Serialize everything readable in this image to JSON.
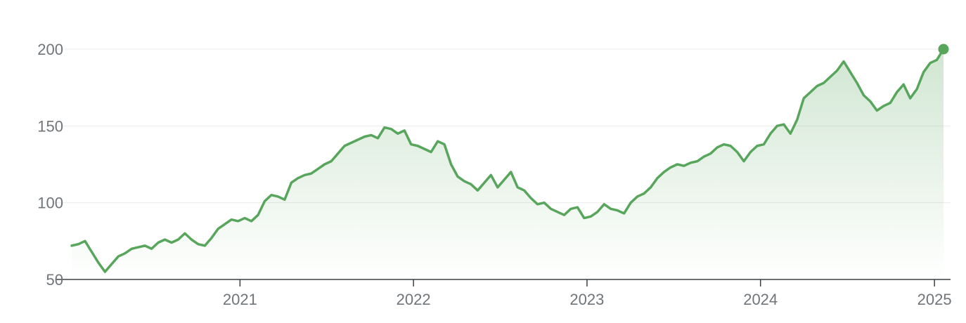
{
  "chart_data": {
    "type": "area",
    "title": "",
    "xlabel": "",
    "ylabel": "",
    "ylim": [
      50,
      200
    ],
    "y_ticks": [
      50,
      100,
      150,
      200
    ],
    "x_tick_labels": [
      "2021",
      "2022",
      "2023",
      "2024",
      "2025"
    ],
    "x_ticks": [
      "2021-01-01",
      "2022-01-01",
      "2023-01-01",
      "2024-01-01",
      "2025-01-01"
    ],
    "grid": true,
    "colors": {
      "line": "#58a55c",
      "fill": "#58a55c",
      "endpoint": "#58a55c"
    },
    "series": [
      {
        "x": [
          "2020-01-13",
          "2020-01-27",
          "2020-02-10",
          "2020-02-24",
          "2020-03-09",
          "2020-03-23",
          "2020-04-06",
          "2020-04-20",
          "2020-05-04",
          "2020-05-18",
          "2020-06-01",
          "2020-06-15",
          "2020-06-29",
          "2020-07-13",
          "2020-07-27",
          "2020-08-10",
          "2020-08-24",
          "2020-09-07",
          "2020-09-21",
          "2020-10-05",
          "2020-10-19",
          "2020-11-02",
          "2020-11-16",
          "2020-11-30",
          "2020-12-14",
          "2020-12-28",
          "2021-01-11",
          "2021-01-25",
          "2021-02-08",
          "2021-02-22",
          "2021-03-08",
          "2021-03-22",
          "2021-04-05",
          "2021-04-19",
          "2021-05-03",
          "2021-05-17",
          "2021-05-31",
          "2021-06-14",
          "2021-06-28",
          "2021-07-12",
          "2021-07-26",
          "2021-08-09",
          "2021-08-23",
          "2021-09-06",
          "2021-09-20",
          "2021-10-04",
          "2021-10-18",
          "2021-11-01",
          "2021-11-15",
          "2021-11-29",
          "2021-12-13",
          "2021-12-27",
          "2022-01-10",
          "2022-01-24",
          "2022-02-07",
          "2022-02-21",
          "2022-03-07",
          "2022-03-21",
          "2022-04-04",
          "2022-04-18",
          "2022-05-02",
          "2022-05-16",
          "2022-05-30",
          "2022-06-13",
          "2022-06-27",
          "2022-07-11",
          "2022-07-25",
          "2022-08-08",
          "2022-08-22",
          "2022-09-05",
          "2022-09-19",
          "2022-10-03",
          "2022-10-17",
          "2022-10-31",
          "2022-11-14",
          "2022-11-28",
          "2022-12-12",
          "2022-12-26",
          "2023-01-09",
          "2023-01-23",
          "2023-02-06",
          "2023-02-20",
          "2023-03-06",
          "2023-03-20",
          "2023-04-03",
          "2023-04-17",
          "2023-05-01",
          "2023-05-15",
          "2023-05-29",
          "2023-06-12",
          "2023-06-26",
          "2023-07-10",
          "2023-07-24",
          "2023-08-07",
          "2023-08-21",
          "2023-09-04",
          "2023-09-18",
          "2023-10-02",
          "2023-10-16",
          "2023-10-30",
          "2023-11-13",
          "2023-11-27",
          "2023-12-11",
          "2023-12-25",
          "2024-01-08",
          "2024-01-22",
          "2024-02-05",
          "2024-02-19",
          "2024-03-04",
          "2024-03-18",
          "2024-04-01",
          "2024-04-15",
          "2024-04-29",
          "2024-05-13",
          "2024-05-27",
          "2024-06-10",
          "2024-06-24",
          "2024-07-08",
          "2024-07-22",
          "2024-08-05",
          "2024-08-19",
          "2024-09-02",
          "2024-09-16",
          "2024-09-30",
          "2024-10-14",
          "2024-10-28",
          "2024-11-11",
          "2024-11-25",
          "2024-12-09",
          "2024-12-23",
          "2025-01-06",
          "2025-01-20"
        ],
        "values": [
          72,
          73,
          75,
          68,
          61,
          55,
          60,
          65,
          67,
          70,
          71,
          72,
          70,
          74,
          76,
          74,
          76,
          80,
          76,
          73,
          72,
          77,
          83,
          86,
          89,
          88,
          90,
          88,
          92,
          101,
          105,
          104,
          102,
          113,
          116,
          118,
          119,
          122,
          125,
          127,
          132,
          137,
          139,
          141,
          143,
          144,
          142,
          149,
          148,
          145,
          147,
          138,
          137,
          135,
          133,
          140,
          138,
          125,
          117,
          114,
          112,
          108,
          113,
          118,
          110,
          115,
          120,
          110,
          108,
          103,
          99,
          100,
          96,
          94,
          92,
          96,
          97,
          90,
          91,
          94,
          99,
          96,
          95,
          93,
          100,
          104,
          106,
          110,
          116,
          120,
          123,
          125,
          124,
          126,
          127,
          130,
          132,
          136,
          138,
          137,
          133,
          127,
          133,
          137,
          138,
          145,
          150,
          151,
          145,
          154,
          168,
          172,
          176,
          178,
          182,
          186,
          192,
          185,
          178,
          170,
          166,
          160,
          163,
          165,
          172,
          177,
          168,
          174,
          185,
          191,
          193,
          200
        ]
      }
    ]
  }
}
